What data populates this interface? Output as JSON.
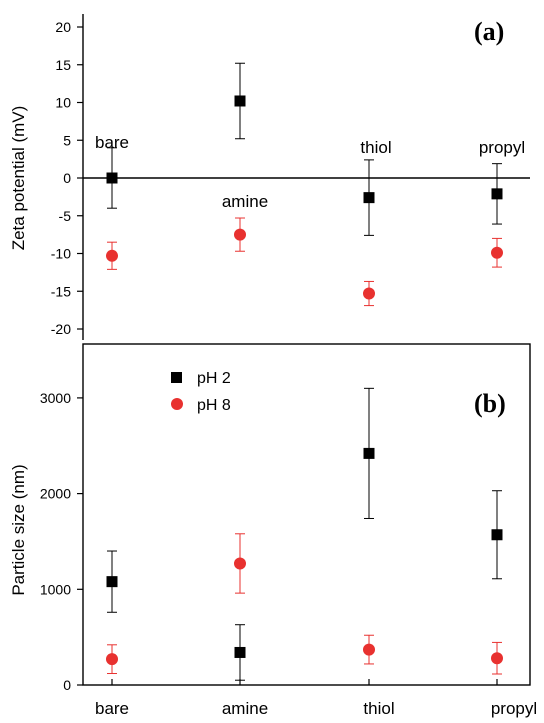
{
  "colors": {
    "ph2": "#000000",
    "ph8": "#e8312f",
    "axis": "#000000"
  },
  "chart_data": [
    {
      "type": "scatter",
      "panel_label": "(a)",
      "ylabel": "Zeta potential (mV)",
      "ylim": [
        -22,
        22
      ],
      "yticks": [
        20,
        15,
        10,
        5,
        0,
        -5,
        -10,
        -15,
        -20
      ],
      "categories": [
        "bare",
        "amine",
        "thiol",
        "propyl"
      ],
      "category_labels": [
        "bare",
        "amine",
        "thiol",
        "propyl"
      ],
      "grid": false,
      "series": [
        {
          "key": "ph2",
          "marker": "square",
          "values": [
            0,
            10.2,
            -2.6,
            -2.1
          ],
          "errors": [
            4.0,
            5.0,
            5.0,
            4.0
          ]
        },
        {
          "key": "ph8",
          "marker": "circle",
          "values": [
            -10.3,
            -7.5,
            -15.3,
            -9.9
          ],
          "errors": [
            1.8,
            2.2,
            1.6,
            1.9
          ]
        }
      ]
    },
    {
      "type": "scatter",
      "panel_label": "(b)",
      "ylabel": "Particle size (nm)",
      "ylim": [
        0,
        3500
      ],
      "yticks": [
        3000,
        2000,
        1000,
        0
      ],
      "categories": [
        "bare",
        "amine",
        "thiol",
        "propyl"
      ],
      "xtick_labels": [
        "bare",
        "amine",
        "thiol",
        "propyl"
      ],
      "grid": false,
      "legend": {
        "position": "top-left",
        "entries": [
          "pH 2",
          "pH 8"
        ]
      },
      "series": [
        {
          "name": "pH 2",
          "key": "ph2",
          "marker": "square",
          "values": [
            1080,
            340,
            2420,
            1570
          ],
          "errors": [
            320,
            290,
            680,
            460
          ]
        },
        {
          "name": "pH 8",
          "key": "ph8",
          "marker": "circle",
          "values": [
            270,
            1270,
            370,
            280
          ],
          "errors": [
            150,
            310,
            150,
            165
          ]
        }
      ]
    }
  ]
}
